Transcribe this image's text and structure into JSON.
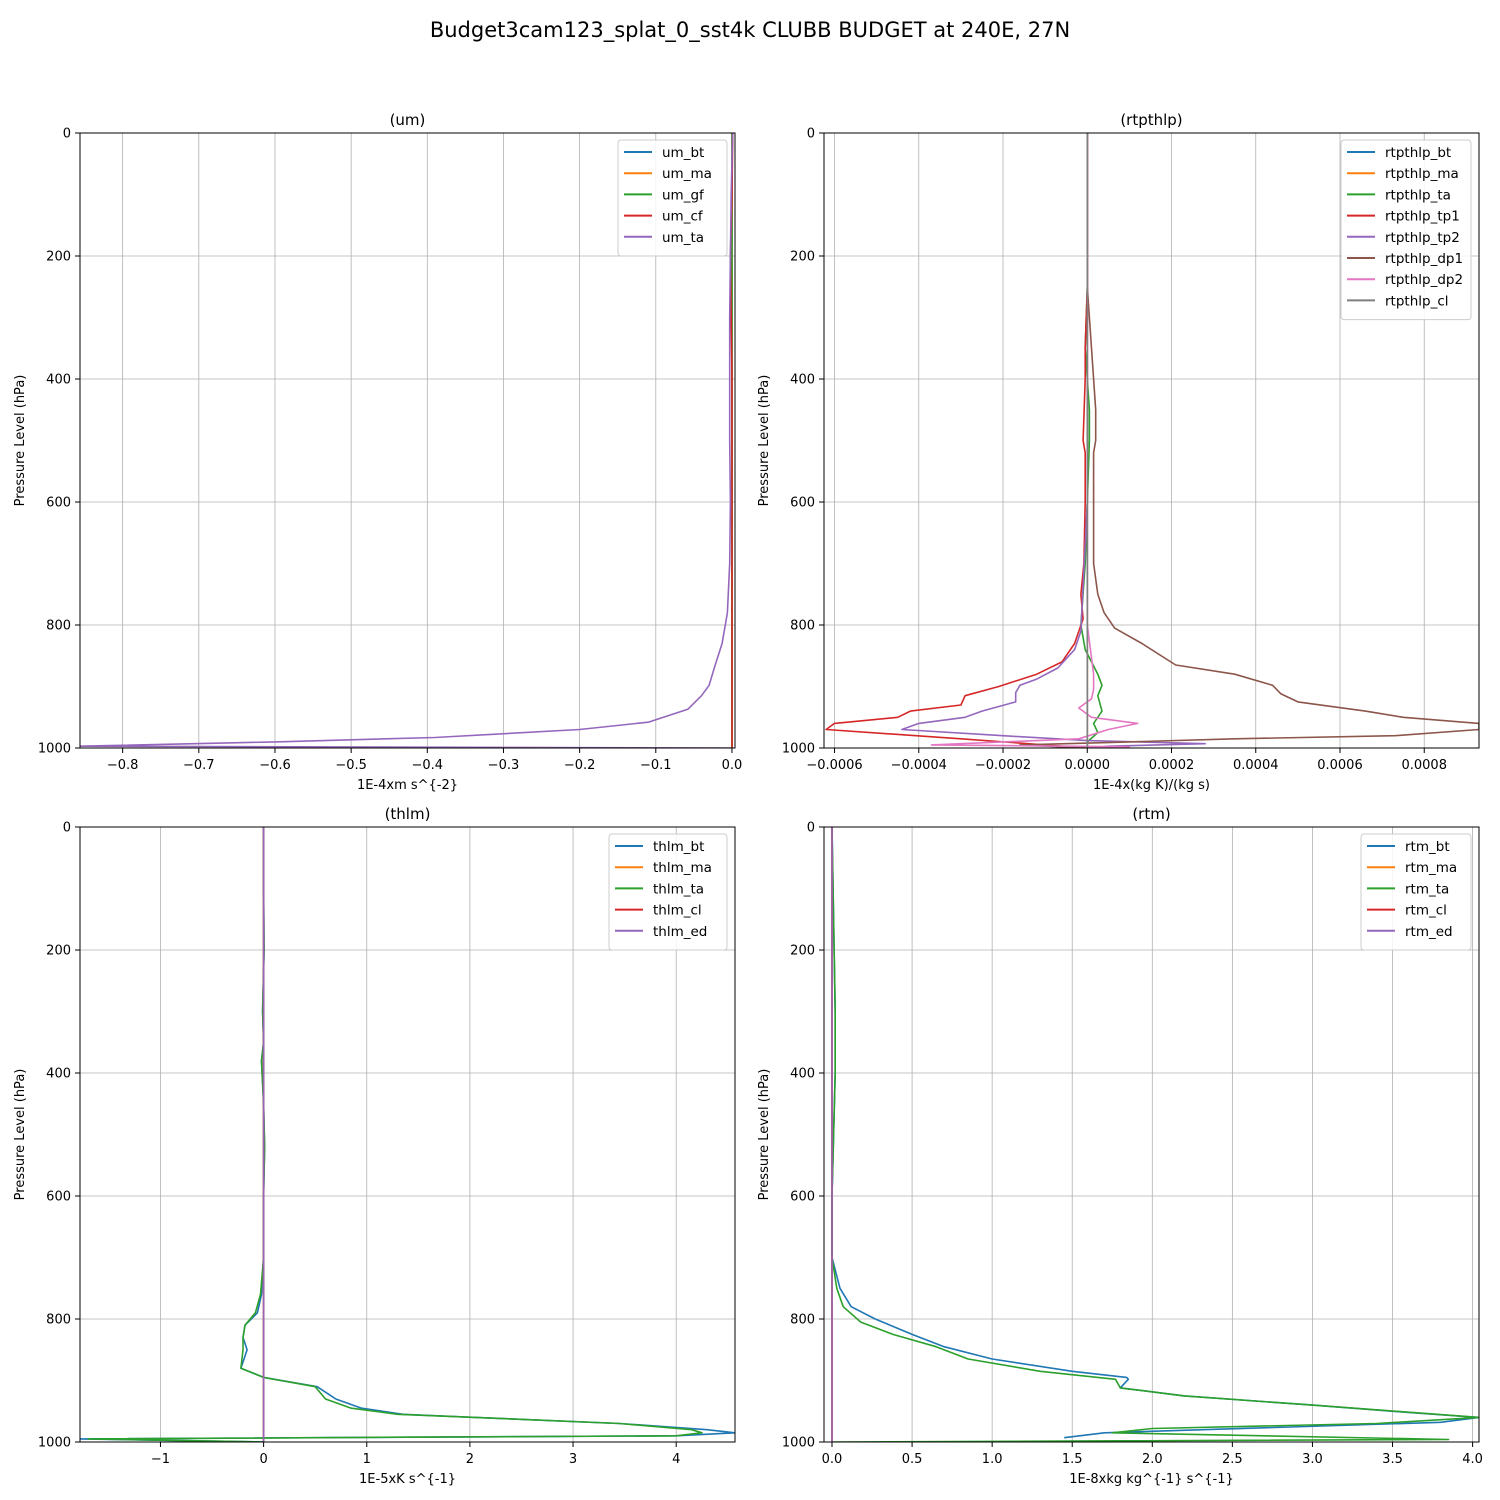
{
  "title": "Budget3cam123_splat_0_sst4k CLUBB BUDGET at 240E, 27N",
  "chart_data": [
    {
      "type": "line",
      "title": "(um)",
      "xlabel": "1E-4xm s^{-2}",
      "ylabel": "Pressure Level (hPa)",
      "xlim": [
        -0.856,
        0.004
      ],
      "ylim": [
        1000,
        0
      ],
      "xticks": [
        -0.8,
        -0.7,
        -0.6,
        -0.5,
        -0.4,
        -0.3,
        -0.2,
        -0.1,
        0.0
      ],
      "xtick_labels": [
        "−0.8",
        "−0.7",
        "−0.6",
        "−0.5",
        "−0.4",
        "−0.3",
        "−0.2",
        "−0.1",
        "0.0"
      ],
      "yticks": [
        0,
        200,
        400,
        600,
        800,
        1000
      ],
      "grid": true,
      "legend": "top-right",
      "series": [
        {
          "name": "um_bt",
          "color": "#1f77b4",
          "x": [
            0.0,
            0.0,
            0.0,
            0.0,
            0.0,
            0.0,
            0.0,
            0.0
          ],
          "y": [
            0,
            200,
            400,
            600,
            800,
            950,
            990,
            1000
          ]
        },
        {
          "name": "um_ma",
          "color": "#ff7f0e",
          "x": [
            0.0,
            0.0,
            0.0,
            0.0,
            0.0,
            0.0
          ],
          "y": [
            0,
            200,
            400,
            600,
            800,
            1000
          ]
        },
        {
          "name": "um_gf",
          "color": "#2ca02c",
          "x": [
            0.0,
            0.0,
            0.0,
            0.0,
            0.0,
            0.0
          ],
          "y": [
            0,
            200,
            400,
            600,
            800,
            1000
          ]
        },
        {
          "name": "um_cf",
          "color": "#d62728",
          "x": [
            0.001,
            0.0,
            -0.002,
            -0.001,
            0.0,
            0.0,
            0.0,
            0.0,
            0.0,
            0.0,
            0.0
          ],
          "y": [
            0,
            100,
            200,
            300,
            400,
            500,
            600,
            700,
            800,
            900,
            1000
          ]
        },
        {
          "name": "um_ta",
          "color": "#9467bd",
          "x": [
            0.001,
            -0.001,
            -0.002,
            -0.003,
            -0.003,
            -0.003,
            -0.002,
            -0.003,
            -0.006,
            -0.013,
            -0.022,
            -0.03,
            -0.04,
            -0.058,
            -0.11,
            -0.2,
            -0.39,
            -0.6,
            -0.856,
            -0.3,
            0.0
          ],
          "y": [
            0,
            100,
            200,
            300,
            400,
            500,
            600,
            700,
            780,
            830,
            865,
            898,
            915,
            937,
            958,
            970,
            983,
            990,
            997,
            999,
            1000
          ]
        }
      ]
    },
    {
      "type": "line",
      "title": "(rtpthlp)",
      "xlabel": "1E-4x(kg K)/(kg s)",
      "ylabel": "Pressure Level (hPa)",
      "xlim": [
        -0.000625,
        0.00093
      ],
      "ylim": [
        1000,
        0
      ],
      "xticks": [
        -0.0006,
        -0.0004,
        -0.0002,
        0.0,
        0.0002,
        0.0004,
        0.0006,
        0.0008
      ],
      "xtick_labels": [
        "−0.0006",
        "−0.0004",
        "−0.0002",
        "0.0000",
        "0.0002",
        "0.0004",
        "0.0006",
        "0.0008"
      ],
      "yticks": [
        0,
        200,
        400,
        600,
        800,
        1000
      ],
      "grid": true,
      "legend": "top-right",
      "series": [
        {
          "name": "rtpthlp_bt",
          "color": "#1f77b4",
          "x": [
            0.0,
            0.0,
            0.0,
            0.0,
            0.0
          ],
          "y": [
            0,
            250,
            500,
            750,
            1000
          ]
        },
        {
          "name": "rtpthlp_ma",
          "color": "#ff7f0e",
          "x": [
            0.0,
            0.0,
            0.0,
            0.0,
            0.0
          ],
          "y": [
            0,
            250,
            500,
            750,
            1000
          ]
        },
        {
          "name": "rtpthlp_ta",
          "color": "#2ca02c",
          "x": [
            0.0,
            0.0,
            -5e-06,
            0.0,
            5e-06,
            5e-06,
            0.0,
            -5e-06,
            -1.5e-05,
            -5e-06,
            2.5e-05,
            3.5e-05,
            2.5e-05,
            3.5e-05,
            1.5e-05,
            2.5e-05,
            0.0,
            0.0
          ],
          "y": [
            0,
            250,
            350,
            400,
            450,
            500,
            600,
            700,
            800,
            840,
            880,
            898,
            915,
            940,
            960,
            975,
            990,
            1000
          ]
        },
        {
          "name": "rtpthlp_tp1",
          "color": "#d62728",
          "x": [
            0.0,
            0.0,
            -5e-06,
            -5e-06,
            -1e-05,
            -5e-06,
            -5e-06,
            -8e-06,
            -1.5e-05,
            -1e-05,
            -3e-05,
            -6e-05,
            -0.00012,
            -0.00021,
            -0.00029,
            -0.0003,
            -0.00042,
            -0.00045,
            -0.0006,
            -0.00062,
            -0.0003,
            0.0
          ],
          "y": [
            0,
            250,
            350,
            400,
            500,
            520,
            600,
            700,
            750,
            790,
            830,
            860,
            880,
            900,
            915,
            930,
            940,
            950,
            960,
            970,
            985,
            1000
          ]
        },
        {
          "name": "rtpthlp_tp2",
          "color": "#9467bd",
          "x": [
            0.0,
            0.0,
            0.0,
            -1.5e-05,
            -3e-05,
            -7e-05,
            -0.00012,
            -0.00016,
            -0.00017,
            -0.00017,
            -0.00025,
            -0.00029,
            -0.0004,
            -0.00044,
            -0.0002,
            0.0,
            0.00028,
            5e-05,
            0.0
          ],
          "y": [
            0,
            250,
            600,
            810,
            840,
            870,
            888,
            898,
            910,
            925,
            940,
            950,
            960,
            970,
            980,
            988,
            993,
            997,
            1000
          ]
        },
        {
          "name": "rtpthlp_dp1",
          "color": "#8c564b",
          "x": [
            0.0,
            0.0,
            5e-06,
            1e-05,
            1.5e-05,
            2e-05,
            2e-05,
            1.5e-05,
            1.5e-05,
            1.5e-05,
            2.5e-05,
            4e-05,
            6.5e-05,
            0.00013,
            0.00021,
            0.00035,
            0.00044,
            0.00046,
            0.0005,
            0.00066,
            0.00075,
            0.00093,
            0.00093,
            0.00073,
            0.00035,
            0.0001,
            -0.00016,
            0.0
          ],
          "y": [
            0,
            250,
            300,
            350,
            400,
            450,
            500,
            520,
            560,
            700,
            750,
            780,
            805,
            830,
            865,
            880,
            898,
            912,
            925,
            940,
            950,
            960,
            970,
            980,
            985,
            990,
            995,
            1000
          ]
        },
        {
          "name": "rtpthlp_dp2",
          "color": "#e377c2",
          "x": [
            0.0,
            0.0,
            0.0,
            1.5e-05,
            1.5e-05,
            1e-05,
            -2e-05,
            1e-05,
            0.00012,
            5e-05,
            -2e-05,
            -0.00037,
            0.0001,
            0.0
          ],
          "y": [
            0,
            250,
            800,
            880,
            905,
            920,
            935,
            950,
            960,
            970,
            985,
            995,
            998,
            1000
          ]
        },
        {
          "name": "rtpthlp_cl",
          "color": "#7f7f7f",
          "x": [
            0.0,
            0.0,
            0.0,
            0.0,
            0.0
          ],
          "y": [
            0,
            250,
            500,
            750,
            1000
          ]
        }
      ]
    },
    {
      "type": "line",
      "title": "(thlm)",
      "xlabel": "1E-5xK s^{-1}",
      "ylabel": "Pressure Level (hPa)",
      "xlim": [
        -1.78,
        4.57
      ],
      "ylim": [
        1000,
        0
      ],
      "xticks": [
        -1,
        0,
        1,
        2,
        3,
        4
      ],
      "xtick_labels": [
        "−1",
        "0",
        "1",
        "2",
        "3",
        "4"
      ],
      "yticks": [
        0,
        200,
        400,
        600,
        800,
        1000
      ],
      "grid": true,
      "legend": "top-right",
      "series": [
        {
          "name": "thlm_bt",
          "color": "#1f77b4",
          "x": [
            0.0,
            0.0,
            0.005,
            -0.01,
            0.0,
            -0.02,
            0.0,
            0.01,
            0.0,
            0.0,
            -0.02,
            -0.06,
            -0.18,
            -0.2,
            -0.16,
            -0.22,
            0.0,
            0.52,
            0.7,
            0.95,
            1.35,
            2.05,
            3.45,
            4.3,
            4.57,
            4.0,
            -1.78,
            0.0
          ],
          "y": [
            0,
            100,
            200,
            300,
            350,
            380,
            450,
            520,
            600,
            700,
            760,
            790,
            810,
            830,
            850,
            880,
            895,
            910,
            930,
            945,
            955,
            960,
            970,
            980,
            985,
            990,
            995,
            1000
          ]
        },
        {
          "name": "thlm_ma",
          "color": "#ff7f0e",
          "x": [
            0.0,
            0.0,
            0.0,
            0.0,
            0.0,
            0.0
          ],
          "y": [
            0,
            200,
            400,
            600,
            800,
            1000
          ]
        },
        {
          "name": "thlm_ta",
          "color": "#2ca02c",
          "x": [
            0.0,
            0.0,
            0.005,
            -0.01,
            0.0,
            -0.02,
            0.0,
            0.01,
            0.0,
            0.0,
            -0.03,
            -0.08,
            -0.18,
            -0.2,
            -0.2,
            -0.22,
            0.0,
            0.5,
            0.6,
            0.85,
            1.3,
            2.05,
            3.45,
            4.15,
            4.25,
            4.0,
            -1.7,
            0.0
          ],
          "y": [
            0,
            100,
            200,
            300,
            350,
            380,
            450,
            520,
            600,
            700,
            760,
            790,
            810,
            830,
            850,
            880,
            895,
            910,
            930,
            945,
            955,
            960,
            970,
            980,
            985,
            990,
            995,
            1000
          ]
        },
        {
          "name": "thlm_cl",
          "color": "#d62728",
          "x": [
            0.0,
            0.0,
            0.0,
            0.0,
            0.0,
            0.0
          ],
          "y": [
            0,
            200,
            400,
            600,
            800,
            1000
          ]
        },
        {
          "name": "thlm_ed",
          "color": "#9467bd",
          "x": [
            0.0,
            0.0,
            0.0,
            0.0,
            0.0,
            0.0
          ],
          "y": [
            0,
            200,
            400,
            600,
            800,
            1000
          ]
        }
      ]
    },
    {
      "type": "line",
      "title": "(rtm)",
      "xlabel": "1E-8xkg kg^{-1} s^{-1}",
      "ylabel": "Pressure Level (hPa)",
      "xlim": [
        -0.05,
        4.04
      ],
      "ylim": [
        1000,
        0
      ],
      "xticks": [
        0.0,
        0.5,
        1.0,
        1.5,
        2.0,
        2.5,
        3.0,
        3.5,
        4.0
      ],
      "xtick_labels": [
        "0.0",
        "0.5",
        "1.0",
        "1.5",
        "2.0",
        "2.5",
        "3.0",
        "3.5",
        "4.0"
      ],
      "yticks": [
        0,
        200,
        400,
        600,
        800,
        1000
      ],
      "grid": true,
      "legend": "top-right",
      "series": [
        {
          "name": "rtm_bt",
          "color": "#1f77b4",
          "x": [
            0.0,
            0.01,
            0.02,
            0.02,
            0.01,
            0.0,
            0.0,
            0.05,
            0.12,
            0.27,
            0.5,
            0.7,
            1.0,
            1.5,
            1.84,
            1.85,
            1.8,
            2.2,
            3.0,
            3.6,
            4.04,
            3.8,
            1.7,
            1.45
          ],
          "y": [
            0,
            150,
            300,
            400,
            500,
            600,
            700,
            750,
            780,
            800,
            825,
            845,
            865,
            885,
            895,
            898,
            912,
            925,
            940,
            952,
            960,
            968,
            985,
            993
          ]
        },
        {
          "name": "rtm_ma",
          "color": "#ff7f0e",
          "x": [
            0.0,
            0.0,
            0.0,
            0.0,
            0.0,
            0.0
          ],
          "y": [
            0,
            200,
            400,
            600,
            800,
            1000
          ]
        },
        {
          "name": "rtm_ta",
          "color": "#2ca02c",
          "x": [
            0.0,
            0.01,
            0.02,
            0.02,
            0.01,
            0.0,
            0.0,
            0.03,
            0.07,
            0.18,
            0.38,
            0.65,
            0.85,
            1.3,
            1.77,
            1.8,
            2.2,
            3.0,
            4.04,
            3.4,
            2.0,
            1.75,
            3.85,
            0.0
          ],
          "y": [
            0,
            150,
            300,
            400,
            500,
            600,
            700,
            750,
            780,
            805,
            825,
            845,
            865,
            885,
            898,
            912,
            925,
            940,
            960,
            970,
            978,
            985,
            996,
            1000
          ]
        },
        {
          "name": "rtm_cl",
          "color": "#d62728",
          "x": [
            0.0,
            0.0,
            0.0,
            0.0,
            0.0,
            0.0
          ],
          "y": [
            0,
            200,
            400,
            600,
            800,
            1000
          ]
        },
        {
          "name": "rtm_ed",
          "color": "#9467bd",
          "x": [
            0.0,
            0.0,
            0.0,
            0.0,
            0.0,
            0.0
          ],
          "y": [
            0,
            200,
            400,
            600,
            800,
            1000
          ]
        }
      ]
    }
  ]
}
